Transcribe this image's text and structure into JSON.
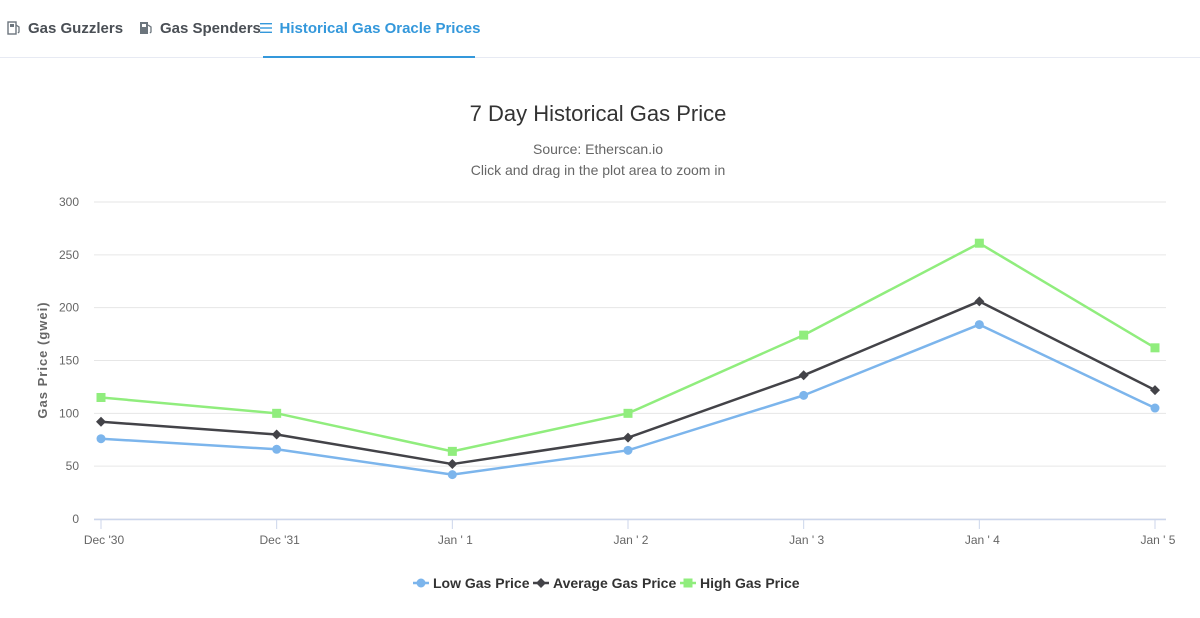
{
  "tabs": [
    {
      "label": "Gas Guzzlers",
      "icon": "gas-pump-icon",
      "active": false
    },
    {
      "label": "Gas Spenders",
      "icon": "gas-pump-filled-icon",
      "active": false
    },
    {
      "label": "Historical Gas Oracle Prices",
      "icon": "list-icon",
      "active": true
    }
  ],
  "chart_data": {
    "type": "line",
    "title": "7 Day Historical Gas Price",
    "subtitle": "Source: Etherscan.io",
    "subtitle2": "Click and drag in the plot area to zoom in",
    "xlabel": "",
    "ylabel": "Gas Price (gwei)",
    "categories": [
      "Dec '30",
      "Dec '31",
      "Jan ' 1",
      "Jan ' 2",
      "Jan ' 3",
      "Jan ' 4",
      "Jan ' 5"
    ],
    "ylim": [
      0,
      300
    ],
    "yticks": [
      0,
      50,
      100,
      150,
      200,
      250,
      300
    ],
    "grid": true,
    "legend_position": "bottom",
    "series": [
      {
        "name": "Low Gas Price",
        "color": "#7cb5ec",
        "marker": "circle",
        "values": [
          76,
          66,
          42,
          65,
          117,
          184,
          105
        ]
      },
      {
        "name": "Average Gas Price",
        "color": "#434348",
        "marker": "diamond",
        "values": [
          92,
          80,
          52,
          77,
          136,
          206,
          122
        ]
      },
      {
        "name": "High Gas Price",
        "color": "#90ed7d",
        "marker": "square",
        "values": [
          115,
          100,
          64,
          100,
          174,
          261,
          162
        ]
      }
    ]
  }
}
